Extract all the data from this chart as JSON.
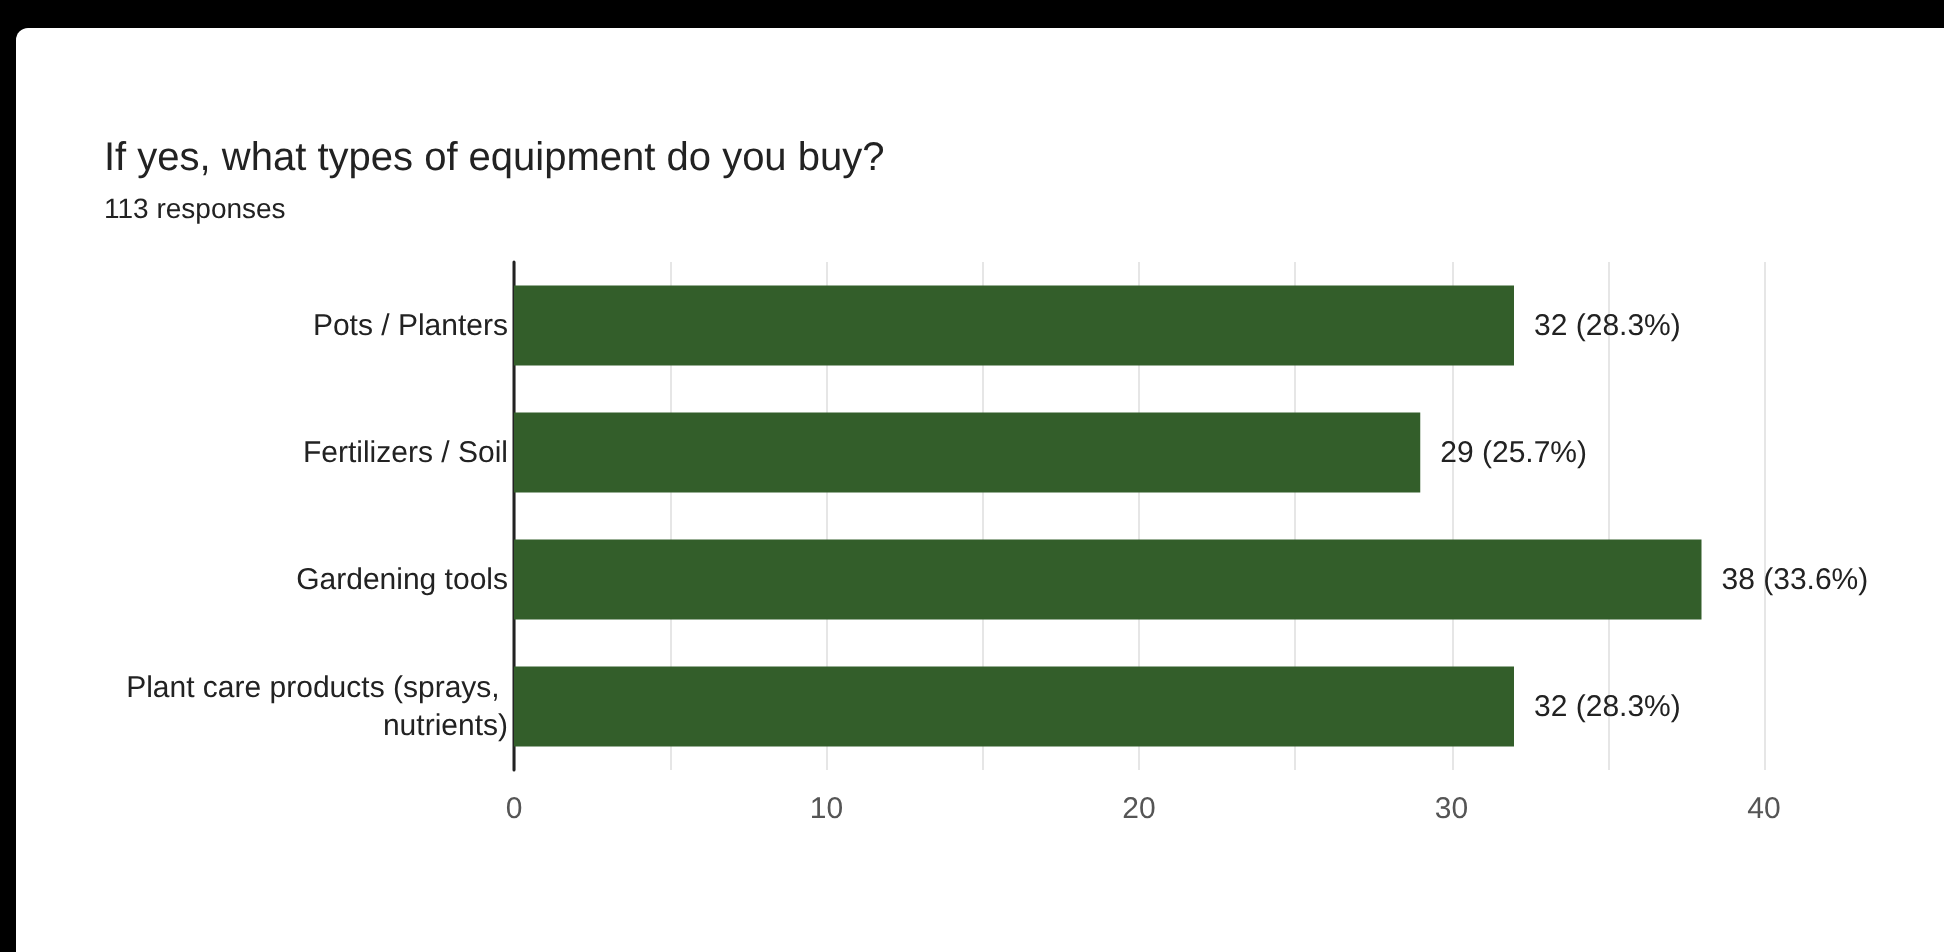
{
  "chart_data": {
    "type": "bar",
    "orientation": "horizontal",
    "title": "If yes, what types of equipment do you buy?",
    "subtitle": "113 responses",
    "categories": [
      "Pots / Planters",
      "Fertilizers / Soil",
      "Gardening tools",
      "Plant care products (sprays, nutrients)"
    ],
    "values": [
      32,
      29,
      38,
      32
    ],
    "color": "#335e2a",
    "value_labels": [
      "32 (28.3%)",
      "29 (25.7%)",
      "38 (33.6%)",
      "32 (28.3%)"
    ],
    "xlim": [
      0,
      40
    ],
    "xticks": [
      0,
      {
        "value": 5,
        "label": null
      },
      10,
      {
        "value": 15,
        "label": null
      },
      20,
      {
        "value": 25,
        "label": null
      },
      30,
      {
        "value": 35,
        "label": null
      },
      40
    ],
    "grid": "x"
  }
}
